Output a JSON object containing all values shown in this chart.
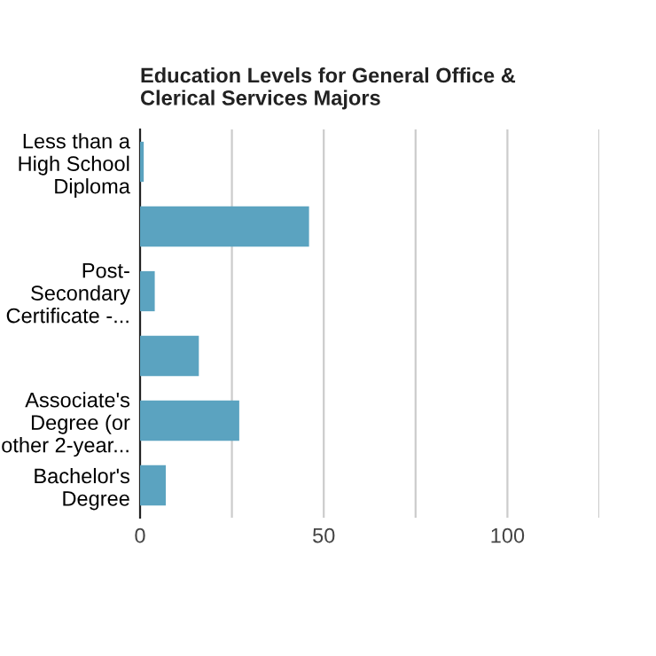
{
  "chart_data": {
    "type": "bar",
    "orientation": "horizontal",
    "title": "Education Levels for General Office &\nClerical Services Majors",
    "categories": [
      "Less than a\nHigh School\nDiploma",
      null,
      "Post-\nSecondary\nCertificate -...",
      null,
      "Associate's\nDegree (or\nother 2-year...",
      "Bachelor's\nDegree"
    ],
    "values": [
      1,
      46,
      4,
      16,
      27,
      7
    ],
    "color": "#5ba3c0",
    "xlim": [
      0,
      125
    ],
    "xticks": [
      0,
      {
        "value": 25,
        "label": null
      },
      50,
      {
        "value": 75,
        "label": null
      },
      100,
      {
        "value": 125,
        "label": null
      }
    ],
    "grid": "x"
  }
}
